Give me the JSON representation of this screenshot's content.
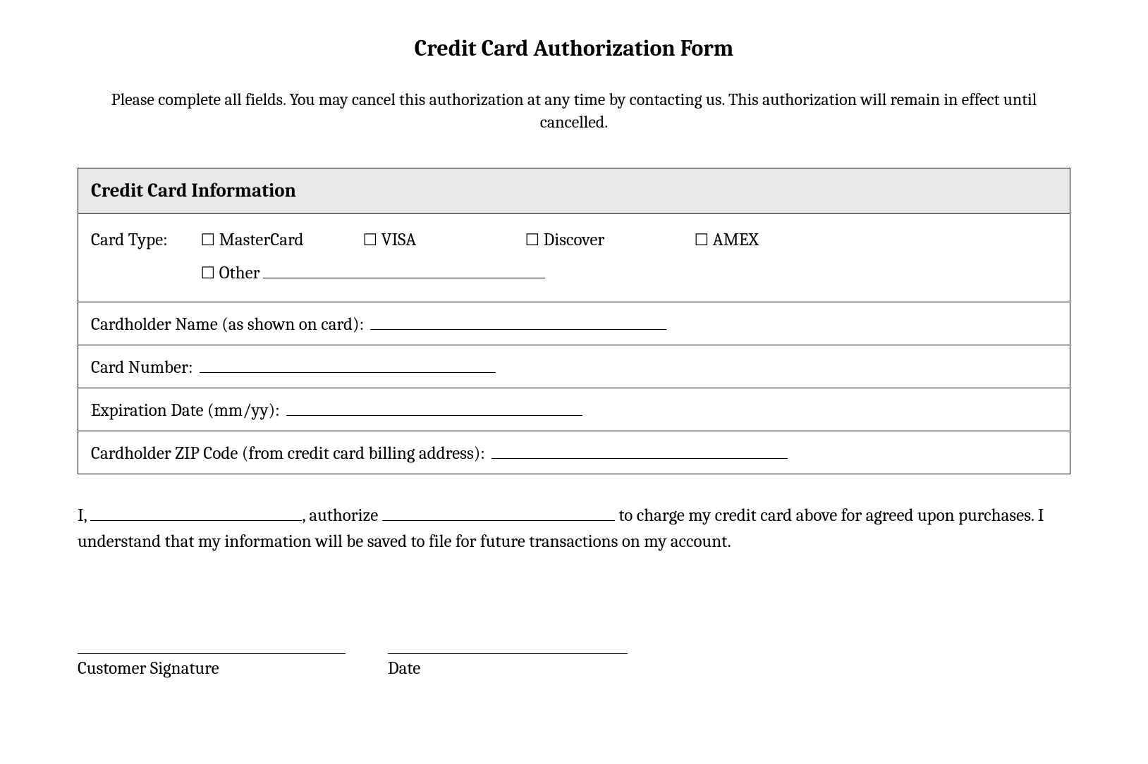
{
  "title": "Credit Card Authorization Form",
  "instructions": "Please complete all fields. You may cancel this authorization at any time by contacting us. This authorization will remain in effect until cancelled.",
  "section_header": "Credit Card Information",
  "card_type": {
    "label": "Card Type:",
    "options": {
      "mastercard": "MasterCard",
      "visa": "VISA",
      "discover": "Discover",
      "amex": "AMEX",
      "other": "Other"
    }
  },
  "fields": {
    "cardholder_name": "Cardholder Name (as shown on card):",
    "card_number": "Card Number:",
    "expiration": "Expiration Date (mm/yy):",
    "zip": "Cardholder ZIP Code (from credit card billing address):"
  },
  "authorization": {
    "prefix": "I,",
    "mid1": ", authorize",
    "mid2": "to charge my credit card above for agreed upon purchases. I understand that my information will be saved to file for future transactions on my account."
  },
  "signature": {
    "customer": "Customer Signature",
    "date": "Date"
  },
  "style": {
    "background_color": "#ffffff",
    "text_color": "#000000",
    "border_color": "#000000",
    "header_bg_color": "#e8e8e8",
    "title_fontsize": 32,
    "body_fontsize": 25,
    "section_header_fontsize": 27,
    "checkbox_glyph": "☐",
    "font_family": "Cambria, Georgia, serif"
  }
}
